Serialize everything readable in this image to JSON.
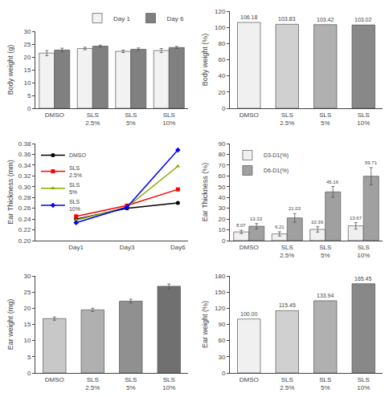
{
  "chart_data": [
    {
      "type": "bar",
      "categories": [
        "DMSO",
        "SLS\n2.5%",
        "SLS\n5%",
        "SLS\n10%"
      ],
      "series": [
        {
          "name": "Day 1",
          "color": "#f2f2f2",
          "values": [
            21.5,
            23.3,
            22.2,
            22.5
          ],
          "errors": [
            1.0,
            0.5,
            0.5,
            0.8
          ]
        },
        {
          "name": "Day 6",
          "color": "#808080",
          "values": [
            22.7,
            24.2,
            23.0,
            23.7
          ],
          "errors": [
            0.7,
            0.4,
            0.5,
            0.4
          ]
        }
      ],
      "ylabel": "Body weight (g)",
      "ylim": [
        0,
        30
      ],
      "yticks": [
        0,
        5,
        10,
        15,
        20,
        25,
        30
      ],
      "legend": "upper right",
      "grid": false
    },
    {
      "type": "bar",
      "categories": [
        "DMSO",
        "SLS\n2.5%",
        "SLS\n5%",
        "SLS\n10%"
      ],
      "values": [
        106.18,
        103.83,
        103.42,
        103.02
      ],
      "colors": [
        "#f0f0f0",
        "#d0d0d0",
        "#b0b0b0",
        "#888888"
      ],
      "data_labels": true,
      "ylabel": "Body weight (%)",
      "ylim": [
        0,
        120
      ],
      "yticks": [
        0,
        20,
        40,
        60,
        80,
        100,
        120
      ],
      "grid": false
    },
    {
      "type": "line",
      "categories": [
        "Day1",
        "Day3",
        "Day6"
      ],
      "series": [
        {
          "name": "DMSO",
          "color": "black",
          "marker": "circle",
          "values": [
            0.24,
            0.26,
            0.27
          ]
        },
        {
          "name": "SLS\n2.5%",
          "color": "red",
          "marker": "square",
          "values": [
            0.245,
            0.265,
            0.295
          ]
        },
        {
          "name": "SLS\n5%",
          "color": "#88aa00",
          "marker": "triangle-up",
          "values": [
            0.238,
            0.262,
            0.338
          ]
        },
        {
          "name": "SLS\n10%",
          "color": "blue",
          "marker": "diamond",
          "values": [
            0.233,
            0.262,
            0.368
          ]
        }
      ],
      "ylabel": "Ear Thickness (mm)",
      "ylim": [
        0.2,
        0.38
      ],
      "yticks": [
        {
          "value": 0.2,
          "label": "0.20"
        },
        0.22,
        0.24,
        0.26,
        0.28,
        {
          "value": 0.3,
          "label": "0.30"
        },
        0.32,
        0.34,
        0.36,
        0.38
      ],
      "legend": "upper left",
      "grid": false
    },
    {
      "type": "bar",
      "categories": [
        "DMSO",
        "SLS\n2.5%",
        "SLS\n5%",
        "SLS\n10%"
      ],
      "series": [
        {
          "name": "D3-D1(%)",
          "color": "#f0f0f0",
          "values": [
            8.07,
            6.21,
            10.39,
            13.67
          ],
          "errors": [
            1.5,
            2.0,
            2.5,
            3.0
          ]
        },
        {
          "name": "D6-D1(%)",
          "color": "#a0a0a0",
          "values": [
            13.33,
            21.03,
            45.16,
            59.71
          ],
          "errors": [
            2.5,
            4.0,
            5.0,
            8.0
          ]
        }
      ],
      "data_labels": true,
      "ylabel": "Ear Thickness (%)",
      "ylim": [
        0,
        90
      ],
      "yticks": [
        0,
        10,
        20,
        30,
        40,
        50,
        60,
        70,
        80,
        90
      ],
      "legend": "upper left",
      "grid": false
    },
    {
      "type": "bar",
      "categories": [
        "DMSO",
        "SLS\n2.5%",
        "SLS\n5%",
        "SLS\n10%"
      ],
      "values": [
        16.8,
        19.5,
        22.2,
        26.8
      ],
      "errors": [
        0.5,
        0.5,
        0.6,
        0.7
      ],
      "colors": [
        "#c8c8c8",
        "#b0b0b0",
        "#909090",
        "#707070"
      ],
      "ylabel": "Ear weight (mg)",
      "ylim": [
        0,
        30
      ],
      "yticks": [
        0,
        5,
        10,
        15,
        20,
        25,
        30
      ],
      "grid": false
    },
    {
      "type": "bar",
      "categories": [
        "DMSO",
        "SLS\n2.5%",
        "SLS\n5%",
        "SLS\n10%"
      ],
      "values": [
        100,
        115.45,
        133.94,
        165.45
      ],
      "value_labels": [
        "100.00",
        "115.45",
        "133.94",
        "165.45"
      ],
      "colors": [
        "#f0f0f0",
        "#d0d0d0",
        "#b0b0b0",
        "#888888"
      ],
      "data_labels": true,
      "ylabel": "Ear weight (%)",
      "ylim": [
        0,
        180
      ],
      "yticks": [
        0,
        30,
        60,
        90,
        120,
        150,
        180
      ],
      "grid": false
    }
  ]
}
